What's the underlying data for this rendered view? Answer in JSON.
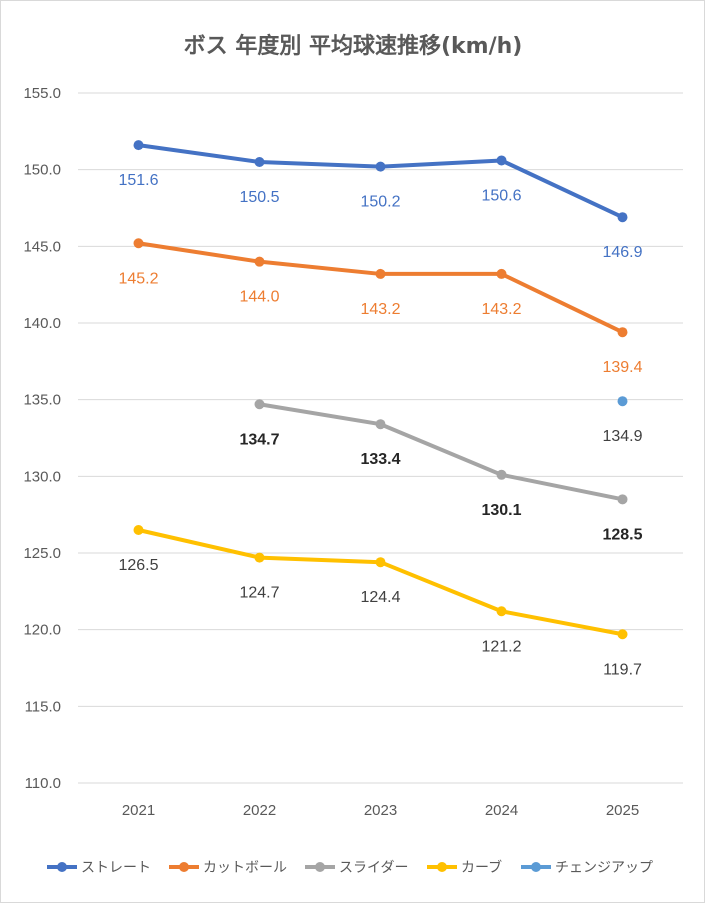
{
  "chart_data": {
    "type": "line",
    "title": "ボス 年度別 平均球速推移(km/h)",
    "categories": [
      "2021",
      "2022",
      "2023",
      "2024",
      "2025"
    ],
    "ylim": [
      110,
      155
    ],
    "ytick_step": 5,
    "ytick_labels": [
      "110.0",
      "115.0",
      "120.0",
      "125.0",
      "130.0",
      "135.0",
      "140.0",
      "145.0",
      "150.0",
      "155.0"
    ],
    "grid": true,
    "legend_position": "bottom",
    "series": [
      {
        "name": "ストレート",
        "color": "#4472c4",
        "label_color": "#4472c4",
        "label_bold": false,
        "values": [
          151.6,
          150.5,
          150.2,
          150.6,
          146.9
        ],
        "labels": [
          "151.6",
          "150.5",
          "150.2",
          "150.6",
          "146.9"
        ]
      },
      {
        "name": "カットボール",
        "color": "#ed7d31",
        "label_color": "#ed7d31",
        "label_bold": false,
        "values": [
          145.2,
          144.0,
          143.2,
          143.2,
          139.4
        ],
        "labels": [
          "145.2",
          "144.0",
          "143.2",
          "143.2",
          "139.4"
        ]
      },
      {
        "name": "スライダー",
        "color": "#a5a5a5",
        "label_color": "#262626",
        "label_bold": true,
        "values": [
          null,
          134.7,
          133.4,
          130.1,
          128.5
        ],
        "labels": [
          null,
          "134.7",
          "133.4",
          "130.1",
          "128.5"
        ]
      },
      {
        "name": "カーブ",
        "color": "#ffc000",
        "label_color": "#404040",
        "label_bold": false,
        "values": [
          126.5,
          124.7,
          124.4,
          121.2,
          119.7
        ],
        "labels": [
          "126.5",
          "124.7",
          "124.4",
          "121.2",
          "119.7"
        ]
      },
      {
        "name": "チェンジアップ",
        "color": "#5b9bd5",
        "label_color": "#404040",
        "label_bold": false,
        "values": [
          null,
          null,
          null,
          null,
          134.9
        ],
        "labels": [
          null,
          null,
          null,
          null,
          "134.9"
        ]
      }
    ]
  }
}
